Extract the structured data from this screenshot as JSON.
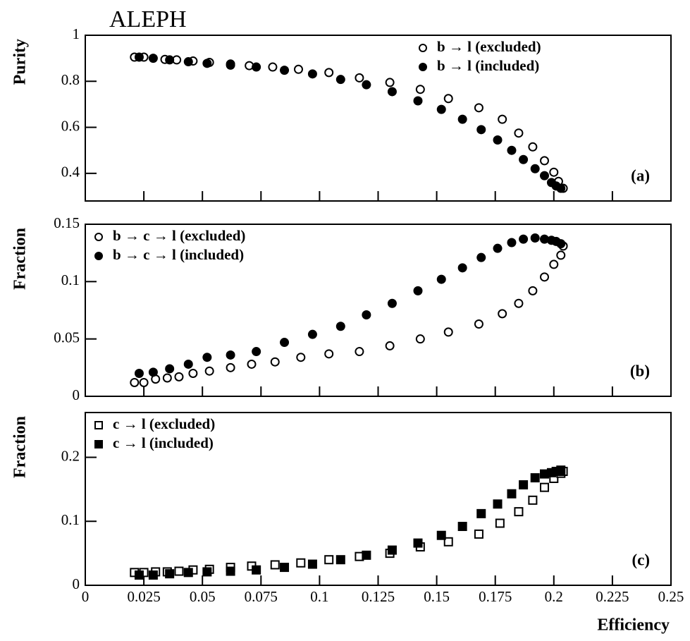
{
  "chart_data": [
    {
      "type": "scatter",
      "title": "ALEPH",
      "ylabel": "Purity",
      "annotation": "(a)",
      "legend_loc": "upper right",
      "xlim": [
        0,
        0.25
      ],
      "ylim": [
        0.28,
        1
      ],
      "yticks": [
        0.4,
        0.6,
        0.8,
        1
      ],
      "series": [
        {
          "name": "b → l (excluded)",
          "color": "#000000",
          "marker": "open-circle",
          "x": [
            0.021,
            0.025,
            0.034,
            0.039,
            0.046,
            0.053,
            0.062,
            0.07,
            0.08,
            0.091,
            0.104,
            0.117,
            0.13,
            0.143,
            0.155,
            0.168,
            0.178,
            0.185,
            0.191,
            0.196,
            0.2,
            0.202,
            0.204
          ],
          "values": [
            0.905,
            0.905,
            0.895,
            0.893,
            0.888,
            0.882,
            0.875,
            0.868,
            0.862,
            0.852,
            0.838,
            0.815,
            0.795,
            0.765,
            0.725,
            0.685,
            0.635,
            0.575,
            0.515,
            0.455,
            0.405,
            0.365,
            0.335
          ]
        },
        {
          "name": "b → l (included)",
          "color": "#000000",
          "marker": "filled-circle",
          "x": [
            0.023,
            0.029,
            0.036,
            0.044,
            0.052,
            0.062,
            0.073,
            0.085,
            0.097,
            0.109,
            0.12,
            0.131,
            0.142,
            0.152,
            0.161,
            0.169,
            0.176,
            0.182,
            0.187,
            0.192,
            0.196,
            0.199,
            0.201,
            0.203
          ],
          "values": [
            0.905,
            0.9,
            0.893,
            0.885,
            0.878,
            0.87,
            0.862,
            0.848,
            0.832,
            0.808,
            0.785,
            0.755,
            0.715,
            0.678,
            0.635,
            0.59,
            0.545,
            0.5,
            0.46,
            0.42,
            0.39,
            0.36,
            0.345,
            0.335
          ]
        }
      ]
    },
    {
      "type": "scatter",
      "ylabel": "Fraction",
      "annotation": "(b)",
      "legend_loc": "upper left",
      "xlim": [
        0,
        0.25
      ],
      "ylim": [
        0,
        0.15
      ],
      "yticks": [
        0,
        0.05,
        0.1,
        0.15
      ],
      "series": [
        {
          "name": "b → c → l (excluded)",
          "color": "#000000",
          "marker": "open-circle",
          "x": [
            0.021,
            0.025,
            0.03,
            0.035,
            0.04,
            0.046,
            0.053,
            0.062,
            0.071,
            0.081,
            0.092,
            0.104,
            0.117,
            0.13,
            0.143,
            0.155,
            0.168,
            0.178,
            0.185,
            0.191,
            0.196,
            0.2,
            0.203,
            0.204
          ],
          "values": [
            0.012,
            0.012,
            0.015,
            0.016,
            0.017,
            0.02,
            0.022,
            0.025,
            0.028,
            0.03,
            0.034,
            0.037,
            0.039,
            0.044,
            0.05,
            0.056,
            0.063,
            0.072,
            0.081,
            0.092,
            0.104,
            0.115,
            0.123,
            0.131
          ]
        },
        {
          "name": "b → c → l (included)",
          "color": "#000000",
          "marker": "filled-circle",
          "x": [
            0.023,
            0.029,
            0.036,
            0.044,
            0.052,
            0.062,
            0.073,
            0.085,
            0.097,
            0.109,
            0.12,
            0.131,
            0.142,
            0.152,
            0.161,
            0.169,
            0.176,
            0.182,
            0.187,
            0.192,
            0.196,
            0.199,
            0.201,
            0.203
          ],
          "values": [
            0.02,
            0.021,
            0.024,
            0.028,
            0.034,
            0.036,
            0.039,
            0.047,
            0.054,
            0.061,
            0.071,
            0.081,
            0.092,
            0.102,
            0.112,
            0.121,
            0.129,
            0.134,
            0.137,
            0.138,
            0.137,
            0.136,
            0.135,
            0.133
          ]
        }
      ]
    },
    {
      "type": "scatter",
      "ylabel": "Fraction",
      "xlabel": "Efficiency",
      "annotation": "(c)",
      "legend_loc": "upper left",
      "xlim": [
        0,
        0.25
      ],
      "ylim": [
        0,
        0.27
      ],
      "yticks": [
        0,
        0.1,
        0.2
      ],
      "xticks": [
        0,
        0.025,
        0.05,
        0.075,
        0.1,
        0.125,
        0.15,
        0.175,
        0.2,
        0.225,
        0.25
      ],
      "series": [
        {
          "name": "c → l (excluded)",
          "color": "#000000",
          "marker": "open-square",
          "x": [
            0.021,
            0.025,
            0.03,
            0.035,
            0.04,
            0.046,
            0.053,
            0.062,
            0.071,
            0.081,
            0.092,
            0.104,
            0.117,
            0.13,
            0.143,
            0.155,
            0.168,
            0.177,
            0.185,
            0.191,
            0.196,
            0.2,
            0.203,
            0.204
          ],
          "values": [
            0.02,
            0.02,
            0.021,
            0.021,
            0.022,
            0.024,
            0.025,
            0.028,
            0.03,
            0.032,
            0.035,
            0.04,
            0.045,
            0.05,
            0.06,
            0.068,
            0.08,
            0.097,
            0.115,
            0.133,
            0.153,
            0.167,
            0.175,
            0.178
          ]
        },
        {
          "name": "c → l (included)",
          "color": "#000000",
          "marker": "filled-square",
          "x": [
            0.023,
            0.029,
            0.036,
            0.044,
            0.052,
            0.062,
            0.073,
            0.085,
            0.097,
            0.109,
            0.12,
            0.131,
            0.142,
            0.152,
            0.161,
            0.169,
            0.176,
            0.182,
            0.187,
            0.192,
            0.196,
            0.199,
            0.201,
            0.203
          ],
          "values": [
            0.016,
            0.016,
            0.018,
            0.02,
            0.021,
            0.022,
            0.024,
            0.028,
            0.033,
            0.04,
            0.047,
            0.055,
            0.066,
            0.078,
            0.092,
            0.112,
            0.127,
            0.143,
            0.157,
            0.168,
            0.174,
            0.176,
            0.178,
            0.18
          ]
        }
      ]
    }
  ]
}
